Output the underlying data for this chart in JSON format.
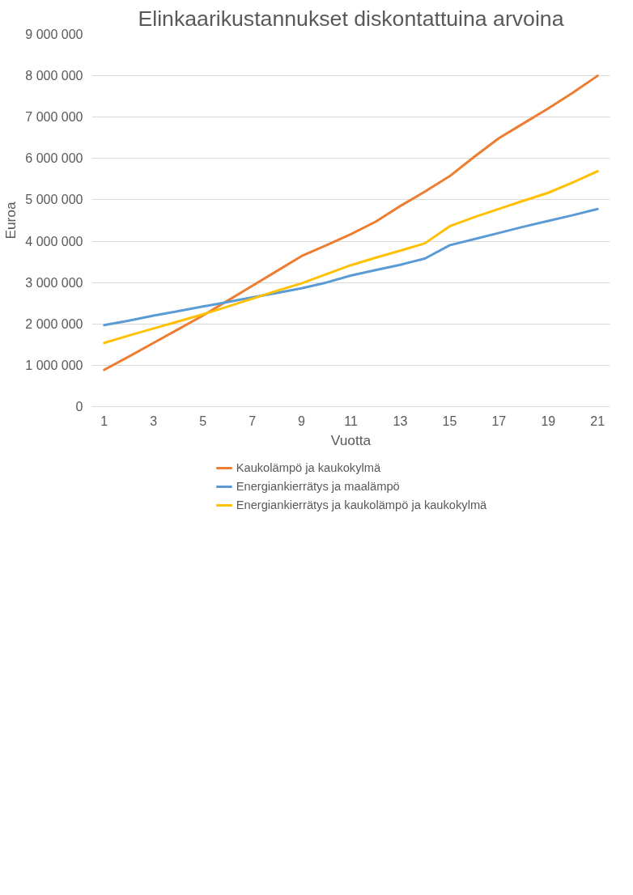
{
  "chart_data": {
    "type": "line",
    "title": "Elinkaarikustannukset diskontattuina arvoina",
    "xlabel": "Vuotta",
    "ylabel": "Euroa",
    "x": [
      1,
      2,
      3,
      4,
      5,
      6,
      7,
      8,
      9,
      10,
      11,
      12,
      13,
      14,
      15,
      16,
      17,
      18,
      19,
      20,
      21
    ],
    "xlim": [
      0.5,
      21.5
    ],
    "xticks": [
      1,
      3,
      5,
      7,
      9,
      11,
      13,
      15,
      17,
      19,
      21
    ],
    "ylim": [
      0,
      9000000
    ],
    "yticks": [
      0,
      {
        "value": 1000000,
        "label": "1 000 000"
      },
      {
        "value": 2000000,
        "label": "2 000 000"
      },
      {
        "value": 3000000,
        "label": "3 000 000"
      },
      {
        "value": 4000000,
        "label": "4 000 000"
      },
      {
        "value": 5000000,
        "label": "5 000 000"
      },
      {
        "value": 6000000,
        "label": "6 000 000"
      },
      {
        "value": 7000000,
        "label": "7 000 000"
      },
      {
        "value": 8000000,
        "label": "8 000 000"
      },
      {
        "value": 9000000,
        "label": "9 000 000"
      }
    ],
    "grid": "y",
    "legend": "bottom",
    "line_style": "solid",
    "series": [
      {
        "name": "Kaukolämpö ja kaukokylmä",
        "color": "#ed7d31",
        "values": [
          890000,
          1210000,
          1540000,
          1870000,
          2200000,
          2560000,
          2920000,
          3280000,
          3640000,
          3900000,
          4170000,
          4470000,
          4850000,
          5200000,
          5570000,
          6040000,
          6490000,
          6850000,
          7210000,
          7590000,
          8000000
        ]
      },
      {
        "name": "Energiankierrätys ja maalämpö",
        "color": "#5b9bd5",
        "values": [
          1970000,
          2080000,
          2200000,
          2310000,
          2420000,
          2530000,
          2640000,
          2750000,
          2860000,
          3000000,
          3170000,
          3300000,
          3430000,
          3580000,
          3900000,
          4050000,
          4200000,
          4350000,
          4490000,
          4630000,
          4780000
        ]
      },
      {
        "name": "Energiankierrätys ja kaukolämpö ja kaukokylmä",
        "color": "#ffc000",
        "values": [
          1540000,
          1720000,
          1890000,
          2060000,
          2230000,
          2420000,
          2610000,
          2800000,
          2980000,
          3200000,
          3420000,
          3600000,
          3770000,
          3950000,
          4360000,
          4580000,
          4780000,
          4980000,
          5170000,
          5420000,
          5690000
        ]
      }
    ]
  }
}
